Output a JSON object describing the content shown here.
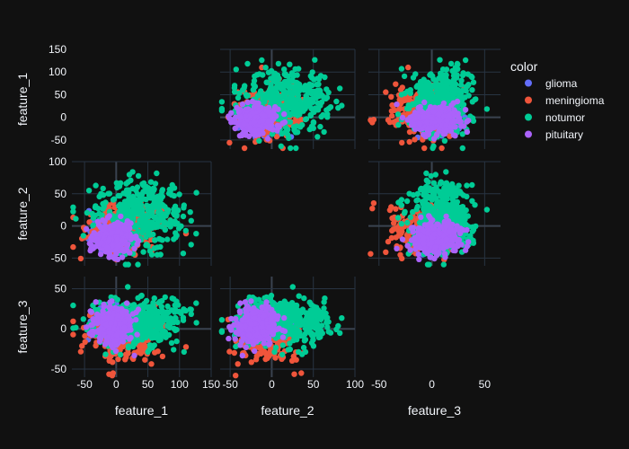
{
  "chart_data": {
    "type": "scatter",
    "subtype": "scatter-matrix",
    "background": "#111111",
    "dimensions": [
      "feature_1",
      "feature_2",
      "feature_3"
    ],
    "axis_ranges": {
      "feature_1": [
        -70,
        150
      ],
      "feature_2": [
        -62,
        100
      ],
      "feature_3": [
        -60,
        65
      ]
    },
    "axis_ticks": {
      "feature_1": [
        -50,
        0,
        50,
        100,
        150
      ],
      "feature_2": [
        -50,
        0,
        50,
        100
      ],
      "feature_3": [
        -50,
        0,
        50
      ]
    },
    "diagonal_visible": false,
    "upper_triangle_visible": true,
    "lower_triangle_visible": true,
    "grid": true,
    "legend": {
      "title": "color",
      "placement": "top-right"
    },
    "series": [
      {
        "name": "glioma",
        "color": "#636efa",
        "centroid": {
          "feature_1": -5,
          "feature_2": -8,
          "feature_3": 4
        },
        "spread": {
          "feature_1": 18,
          "feature_2": 14,
          "feature_3": 10
        },
        "count": 140
      },
      {
        "name": "meningioma",
        "color": "#EF553B",
        "centroid": {
          "feature_1": 12,
          "feature_2": -5,
          "feature_3": -14
        },
        "spread": {
          "feature_1": 30,
          "feature_2": 18,
          "feature_3": 16
        },
        "count": 180
      },
      {
        "name": "notumor",
        "color": "#00cc96",
        "centroid": {
          "feature_1": 35,
          "feature_2": 18,
          "feature_3": 8
        },
        "spread": {
          "feature_1": 35,
          "feature_2": 28,
          "feature_3": 14
        },
        "count": 420
      },
      {
        "name": "pituitary",
        "color": "#ab63fa",
        "centroid": {
          "feature_1": -5,
          "feature_2": -20,
          "feature_3": 2
        },
        "spread": {
          "feature_1": 14,
          "feature_2": 12,
          "feature_3": 12
        },
        "count": 300
      }
    ]
  }
}
